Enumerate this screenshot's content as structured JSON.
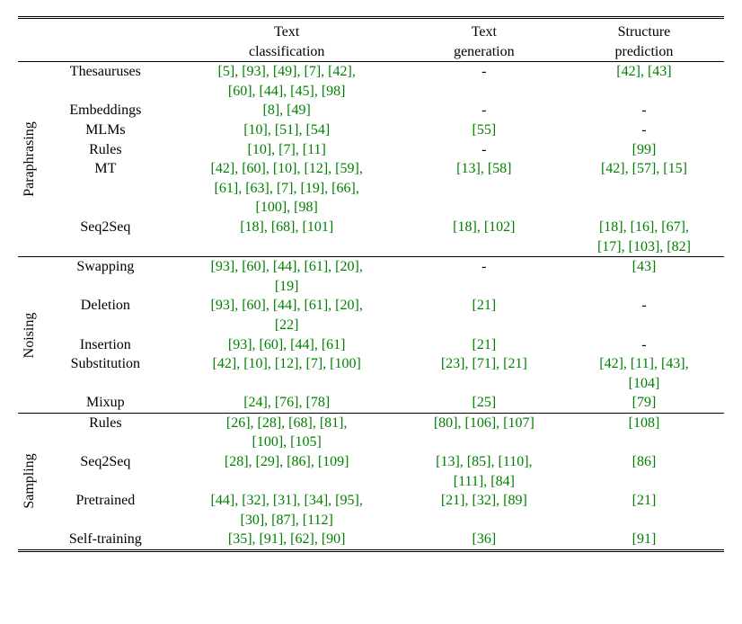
{
  "cite_color": "#008000",
  "text_color": "#000000",
  "background_color": "#ffffff",
  "font_family": "Times New Roman",
  "font_size_pt": 12,
  "headers": {
    "col1_line1": "Text",
    "col1_line2": "classification",
    "col2_line1": "Text",
    "col2_line2": "generation",
    "col3_line1": "Structure",
    "col3_line2": "prediction"
  },
  "groups": [
    {
      "name": "Paraphrasing",
      "rows": [
        {
          "label": "Thesauruses",
          "tc": [
            [
              "5",
              "93",
              "49",
              "7",
              "42"
            ],
            [
              "60",
              "44",
              "45",
              "98"
            ]
          ],
          "tg": "-",
          "sp": [
            [
              "42",
              "43"
            ]
          ]
        },
        {
          "label": "Embeddings",
          "tc": [
            [
              "8",
              "49"
            ]
          ],
          "tg": "-",
          "sp": "-"
        },
        {
          "label": "MLMs",
          "tc": [
            [
              "10",
              "51",
              "54"
            ]
          ],
          "tg": [
            [
              "55"
            ]
          ],
          "sp": "-"
        },
        {
          "label": "Rules",
          "tc": [
            [
              "10",
              "7",
              "11"
            ]
          ],
          "tg": "-",
          "sp": [
            [
              "99"
            ]
          ]
        },
        {
          "label": "MT",
          "tc": [
            [
              "42",
              "60",
              "10",
              "12",
              "59"
            ],
            [
              "61",
              "63",
              "7",
              "19",
              "66"
            ],
            [
              "100",
              "98"
            ]
          ],
          "tg": [
            [
              "13",
              "58"
            ]
          ],
          "sp": [
            [
              "42",
              "57",
              "15"
            ]
          ]
        },
        {
          "label": "Seq2Seq",
          "tc": [
            [
              "18",
              "68",
              "101"
            ]
          ],
          "tg": [
            [
              "18",
              "102"
            ]
          ],
          "sp": [
            [
              "18",
              "16",
              "67"
            ],
            [
              "17",
              "103",
              "82"
            ]
          ]
        }
      ]
    },
    {
      "name": "Noising",
      "rows": [
        {
          "label": "Swapping",
          "tc": [
            [
              "93",
              "60",
              "44",
              "61",
              "20"
            ],
            [
              "19"
            ]
          ],
          "tg": "-",
          "sp": [
            [
              "43"
            ]
          ]
        },
        {
          "label": "Deletion",
          "tc": [
            [
              "93",
              "60",
              "44",
              "61",
              "20"
            ],
            [
              "22"
            ]
          ],
          "tg": [
            [
              "21"
            ]
          ],
          "sp": "-"
        },
        {
          "label": "Insertion",
          "tc": [
            [
              "93",
              "60",
              "44",
              "61"
            ]
          ],
          "tg": [
            [
              "21"
            ]
          ],
          "sp": "-"
        },
        {
          "label": "Substitution",
          "tc": [
            [
              "42",
              "10",
              "12",
              "7",
              "100"
            ]
          ],
          "tg": [
            [
              "23",
              "71",
              "21"
            ]
          ],
          "sp": [
            [
              "42",
              "11",
              "43"
            ],
            [
              "104"
            ]
          ]
        },
        {
          "label": "Mixup",
          "tc": [
            [
              "24",
              "76",
              "78"
            ]
          ],
          "tg": [
            [
              "25"
            ]
          ],
          "sp": [
            [
              "79"
            ]
          ]
        }
      ]
    },
    {
      "name": "Sampling",
      "rows": [
        {
          "label": "Rules",
          "tc": [
            [
              "26",
              "28",
              "68",
              "81"
            ],
            [
              "100",
              "105"
            ]
          ],
          "tg": [
            [
              "80",
              "106",
              "107"
            ]
          ],
          "sp": [
            [
              "108"
            ]
          ]
        },
        {
          "label": "Seq2Seq",
          "tc": [
            [
              "28",
              "29",
              "86",
              "109"
            ]
          ],
          "tg": [
            [
              "13",
              "85",
              "110"
            ],
            [
              "111",
              "84"
            ]
          ],
          "sp": [
            [
              "86"
            ]
          ]
        },
        {
          "label": "Pretrained",
          "tc": [
            [
              "44",
              "32",
              "31",
              "34",
              "95"
            ],
            [
              "30",
              "87",
              "112"
            ]
          ],
          "tg": [
            [
              "21",
              "32",
              "89"
            ]
          ],
          "sp": [
            [
              "21"
            ]
          ]
        },
        {
          "label": "Self-training",
          "tc": [
            [
              "35",
              "91",
              "62",
              "90"
            ]
          ],
          "tg": [
            [
              "36"
            ]
          ],
          "sp": [
            [
              "91"
            ]
          ]
        }
      ]
    }
  ]
}
